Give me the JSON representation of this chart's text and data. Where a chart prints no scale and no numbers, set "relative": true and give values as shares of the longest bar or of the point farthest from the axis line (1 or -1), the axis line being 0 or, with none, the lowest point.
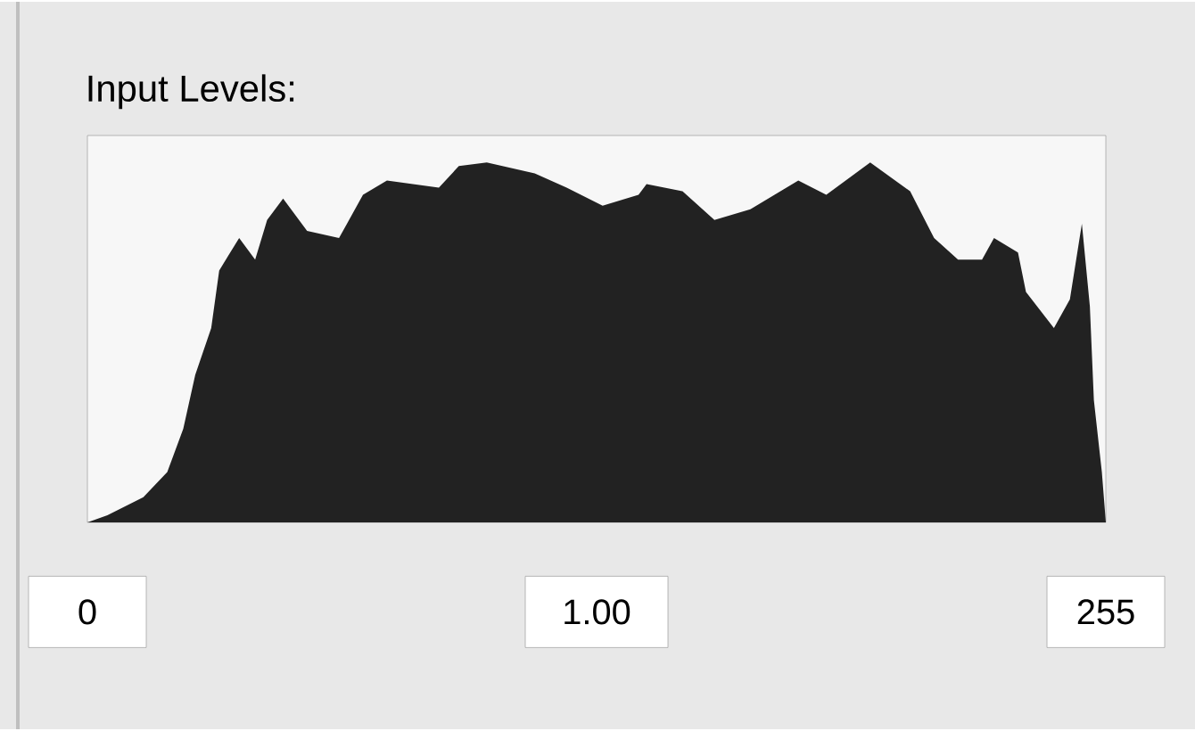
{
  "chart_data": {
    "type": "area",
    "title": "Input Levels:",
    "relative": true,
    "color": "#222222",
    "x": [
      0,
      5,
      14,
      20,
      24,
      27,
      31,
      33,
      38,
      42,
      45,
      49,
      55,
      63,
      69,
      75,
      88,
      93,
      100,
      112,
      120,
      129,
      138,
      140,
      149,
      157,
      166,
      178,
      185,
      196,
      206,
      212,
      218,
      224,
      227,
      233,
      235,
      242,
      246,
      249,
      251,
      252,
      254,
      255
    ],
    "values": [
      0.0,
      0.02,
      0.07,
      0.14,
      0.26,
      0.41,
      0.54,
      0.7,
      0.79,
      0.73,
      0.84,
      0.9,
      0.81,
      0.79,
      0.91,
      0.95,
      0.93,
      0.99,
      1.0,
      0.97,
      0.93,
      0.88,
      0.91,
      0.94,
      0.92,
      0.84,
      0.87,
      0.95,
      0.91,
      1.0,
      0.92,
      0.79,
      0.73,
      0.73,
      0.79,
      0.75,
      0.64,
      0.54,
      0.62,
      0.83,
      0.6,
      0.34,
      0.14,
      0.0
    ],
    "xlim": [
      0,
      255
    ],
    "xticks": [
      0,
      255
    ],
    "annotations": [
      "1.00"
    ]
  }
}
